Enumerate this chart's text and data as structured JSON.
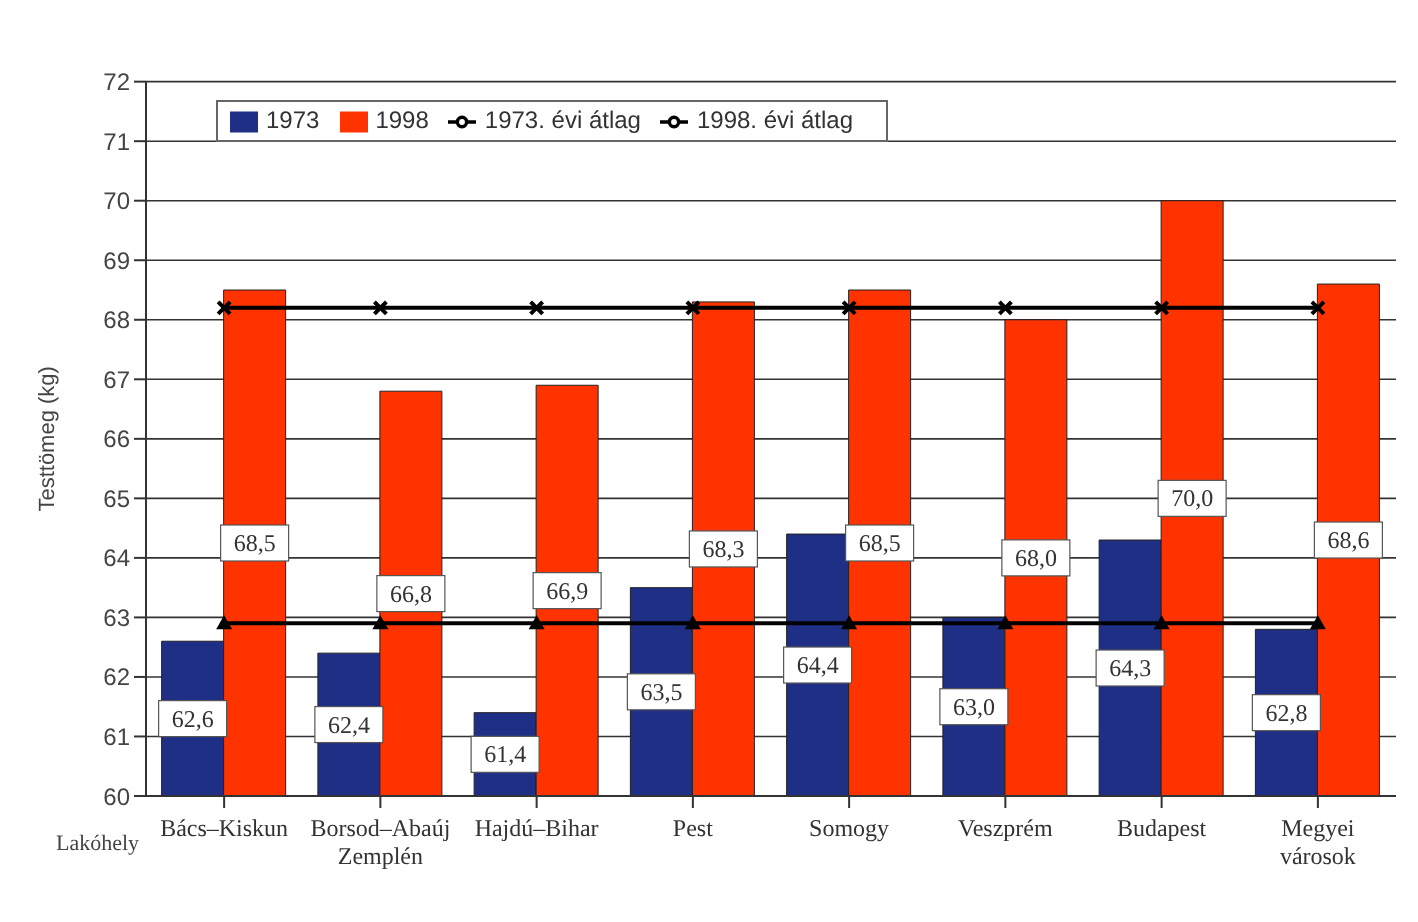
{
  "chart_data": {
    "type": "bar",
    "ylabel": "Testtömeg (kg)",
    "xlabel": "Lakóhely",
    "categories": [
      "Bács–Kiskun",
      "Borsod–Abaúj Zemplén",
      "Hajdú–Bihar",
      "Pest",
      "Somogy",
      "Veszprém",
      "Budapest",
      "Megyei városok"
    ],
    "series": [
      {
        "name": "1973",
        "color": "#1f2f86",
        "values": [
          62.6,
          62.4,
          61.4,
          63.5,
          64.4,
          63.0,
          64.3,
          62.8
        ],
        "value_labels": [
          "62,6",
          "62,4",
          "61,4",
          "63,5",
          "64,4",
          "63,0",
          "64,3",
          "62,8"
        ]
      },
      {
        "name": "1998",
        "color": "#ff3300",
        "values": [
          68.5,
          66.8,
          66.9,
          68.3,
          68.5,
          68.0,
          70.0,
          68.6
        ],
        "value_labels": [
          "68,5",
          "66,8",
          "66,9",
          "68,3",
          "68,5",
          "68,0",
          "70,0",
          "68,6"
        ]
      },
      {
        "name": "1973. évi átlag",
        "type": "line",
        "color": "#000000",
        "marker": "triangle",
        "values": [
          62.9,
          62.9,
          62.9,
          62.9,
          62.9,
          62.9,
          62.9,
          62.9
        ]
      },
      {
        "name": "1998. évi átlag",
        "type": "line",
        "color": "#000000",
        "marker": "cross",
        "values": [
          68.2,
          68.2,
          68.2,
          68.2,
          68.2,
          68.2,
          68.2,
          68.2
        ]
      }
    ],
    "ylim": [
      60,
      72
    ],
    "yticks": [
      60,
      61,
      62,
      63,
      64,
      65,
      66,
      67,
      68,
      69,
      70,
      71,
      72
    ],
    "grid": "y",
    "legend": "top left"
  }
}
